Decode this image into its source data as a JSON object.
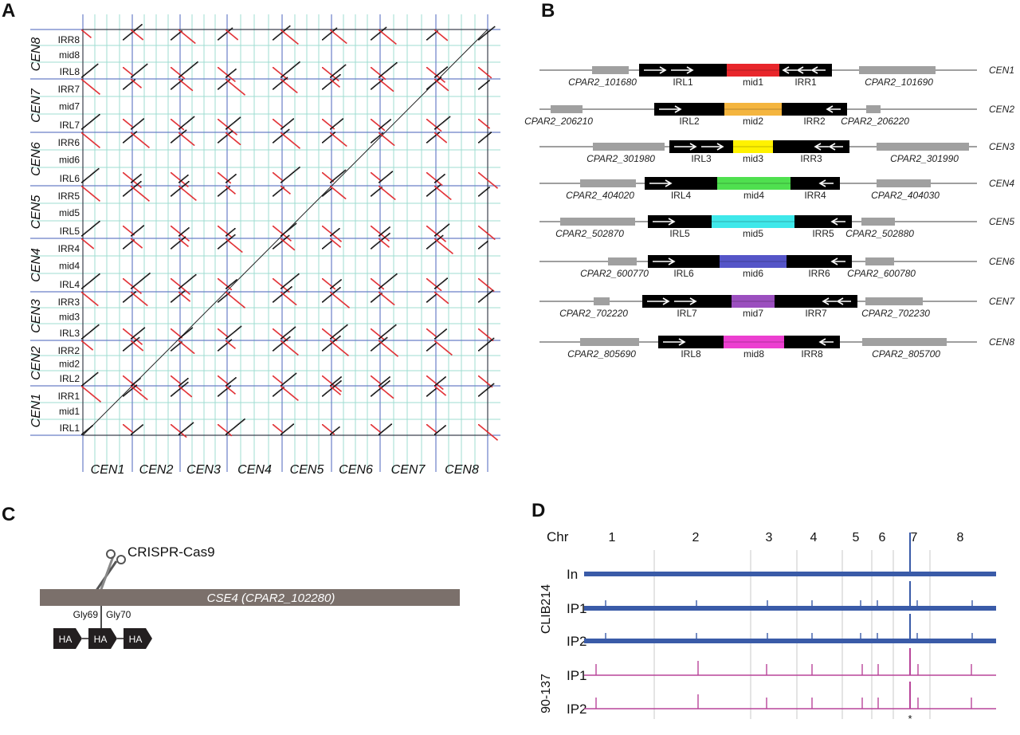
{
  "panels": {
    "a": {
      "letter": "A",
      "row_groups": [
        {
          "cen": "CEN8",
          "labels": [
            "IRR8",
            "mid8",
            "IRL8"
          ]
        },
        {
          "cen": "CEN7",
          "labels": [
            "IRR7",
            "mid7",
            "IRL7"
          ]
        },
        {
          "cen": "CEN6",
          "labels": [
            "IRR6",
            "mid6",
            "IRL6"
          ]
        },
        {
          "cen": "CEN5",
          "labels": [
            "IRR5",
            "mid5",
            "IRL5"
          ]
        },
        {
          "cen": "CEN4",
          "labels": [
            "IRR4",
            "mid4",
            "IRL4"
          ]
        },
        {
          "cen": "CEN3",
          "labels": [
            "IRR3",
            "mid3",
            "IRL3"
          ]
        },
        {
          "cen": "CEN2",
          "labels": [
            "IRR2",
            "mid2",
            "IRL2"
          ]
        },
        {
          "cen": "CEN1",
          "labels": [
            "IRR1",
            "mid1",
            "IRL1"
          ]
        }
      ],
      "col_labels": [
        "CEN1",
        "CEN2",
        "CEN3",
        "CEN4",
        "CEN5",
        "CEN6",
        "CEN7",
        "CEN8"
      ]
    },
    "b": {
      "letter": "B",
      "rows": [
        {
          "cen": "CEN1",
          "irl": "IRL1",
          "mid": "mid1",
          "irr": "IRR1",
          "gene_left": "CPAR2_101680",
          "gene_right": "CPAR2_101690",
          "mid_color": "#e8262b"
        },
        {
          "cen": "CEN2",
          "irl": "IRL2",
          "mid": "mid2",
          "irr": "IRR2",
          "gene_left": "CPAR2_206210",
          "gene_right": "CPAR2_206220",
          "mid_color": "#f4b53f"
        },
        {
          "cen": "CEN3",
          "irl": "IRL3",
          "mid": "mid3",
          "irr": "IRR3",
          "gene_left": "CPAR2_301980",
          "gene_right": "CPAR2_301990",
          "mid_color": "#fff200"
        },
        {
          "cen": "CEN4",
          "irl": "IRL4",
          "mid": "mid4",
          "irr": "IRR4",
          "gene_left": "CPAR2_404020",
          "gene_right": "CPAR2_404030",
          "mid_color": "#4fe04f"
        },
        {
          "cen": "CEN5",
          "irl": "IRL5",
          "mid": "mid5",
          "irr": "IRR5",
          "gene_left": "CPAR2_502870",
          "gene_right": "CPAR2_502880",
          "mid_color": "#3fe8ea"
        },
        {
          "cen": "CEN6",
          "irl": "IRL6",
          "mid": "mid6",
          "irr": "IRR6",
          "gene_left": "CPAR2_600770",
          "gene_right": "CPAR2_600780",
          "mid_color": "#5555c8"
        },
        {
          "cen": "CEN7",
          "irl": "IRL7",
          "mid": "mid7",
          "irr": "IRR7",
          "gene_left": "CPAR2_702220",
          "gene_right": "CPAR2_702230",
          "mid_color": "#9b4fbf"
        },
        {
          "cen": "CEN8",
          "irl": "IRL8",
          "mid": "mid8",
          "irr": "IRR8",
          "gene_left": "CPAR2_805690",
          "gene_right": "CPAR2_805700",
          "mid_color": "#ec3fd0"
        }
      ]
    },
    "c": {
      "letter": "C",
      "tool": "CRISPR-Cas9",
      "gene": "CSE4 (CPAR2_102280)",
      "site_left": "Gly69",
      "site_right": "Gly70",
      "tag": "HA",
      "tag_count": 3
    },
    "d": {
      "letter": "D",
      "chr_label": "Chr",
      "chromosomes": [
        "1",
        "2",
        "3",
        "4",
        "5",
        "6",
        "7",
        "8"
      ],
      "strain_1": "CLIB214",
      "strain_2": "90-137",
      "tracks": [
        {
          "label": "In",
          "strain": "CLIB214",
          "color": "#3a5ba8"
        },
        {
          "label": "IP1",
          "strain": "CLIB214",
          "color": "#3a5ba8"
        },
        {
          "label": "IP2",
          "strain": "CLIB214",
          "color": "#3a5ba8"
        },
        {
          "label": "IP1",
          "strain": "90-137",
          "color": "#b8459a"
        },
        {
          "label": "IP2",
          "strain": "90-137",
          "color": "#b8459a"
        }
      ],
      "asterisk": "*"
    }
  }
}
